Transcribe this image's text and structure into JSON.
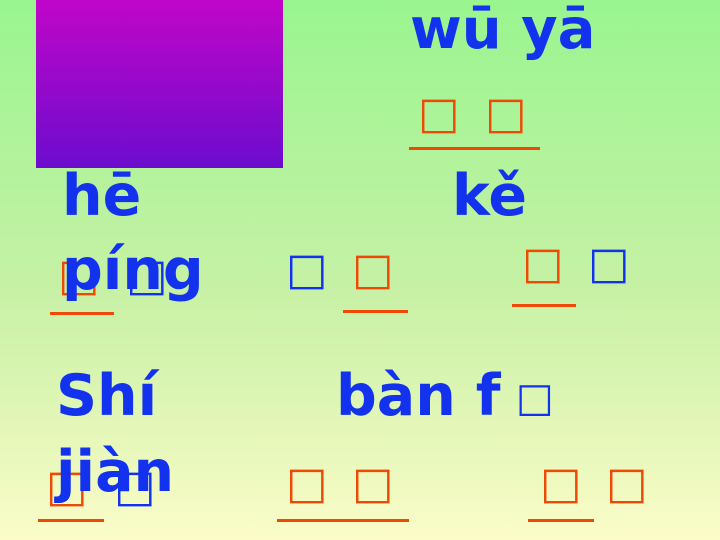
{
  "colors": {
    "pinyin": "#1232ee",
    "character": "#ee4a06",
    "underline": "#ee4a06",
    "box_top": "#c006c8",
    "box_bottom": "#6c0cce"
  },
  "words": {
    "wuya": {
      "pinyin": "wū yā",
      "chars": [
        "□",
        "□"
      ]
    },
    "he": {
      "pinyin": "hē"
    },
    "ke": {
      "pinyin": "kě"
    },
    "ping": {
      "pinyin": "píng",
      "chars": [
        "□",
        "□"
      ]
    },
    "w4": {
      "chars": [
        "□",
        "□"
      ]
    },
    "w5": {
      "chars": [
        "□",
        "□"
      ]
    },
    "shi": {
      "pinyin": "Shí"
    },
    "banfa": {
      "pinyin": "bàn f",
      "glyph": "□"
    },
    "jian": {
      "pinyin": "jiàn",
      "chars": [
        "□",
        "□"
      ]
    },
    "w8": {
      "chars": [
        "□",
        "□"
      ]
    },
    "w9": {
      "chars": [
        "□",
        "□"
      ]
    }
  }
}
